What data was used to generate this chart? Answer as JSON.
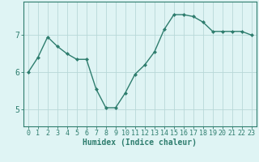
{
  "xlabel": "Humidex (Indice chaleur)",
  "x": [
    0,
    1,
    2,
    3,
    4,
    5,
    6,
    7,
    8,
    9,
    10,
    11,
    12,
    13,
    14,
    15,
    16,
    17,
    18,
    19,
    20,
    21,
    22,
    23
  ],
  "y": [
    6.0,
    6.4,
    6.95,
    6.7,
    6.5,
    6.35,
    6.35,
    5.55,
    5.05,
    5.05,
    5.45,
    5.95,
    6.2,
    6.55,
    7.15,
    7.55,
    7.55,
    7.5,
    7.35,
    7.1,
    7.1,
    7.1,
    7.1,
    7.0
  ],
  "line_color": "#2e7d6e",
  "marker": "D",
  "marker_size": 2.0,
  "bg_color": "#dff4f4",
  "grid_color": "#b8d8d8",
  "ylim": [
    4.55,
    7.9
  ],
  "yticks": [
    5,
    6,
    7
  ],
  "xlim": [
    -0.5,
    23.5
  ],
  "xticks": [
    0,
    1,
    2,
    3,
    4,
    5,
    6,
    7,
    8,
    9,
    10,
    11,
    12,
    13,
    14,
    15,
    16,
    17,
    18,
    19,
    20,
    21,
    22,
    23
  ],
  "xlabel_fontsize": 7,
  "tick_fontsize": 6,
  "axis_color": "#2e7d6e",
  "linewidth": 1.0
}
